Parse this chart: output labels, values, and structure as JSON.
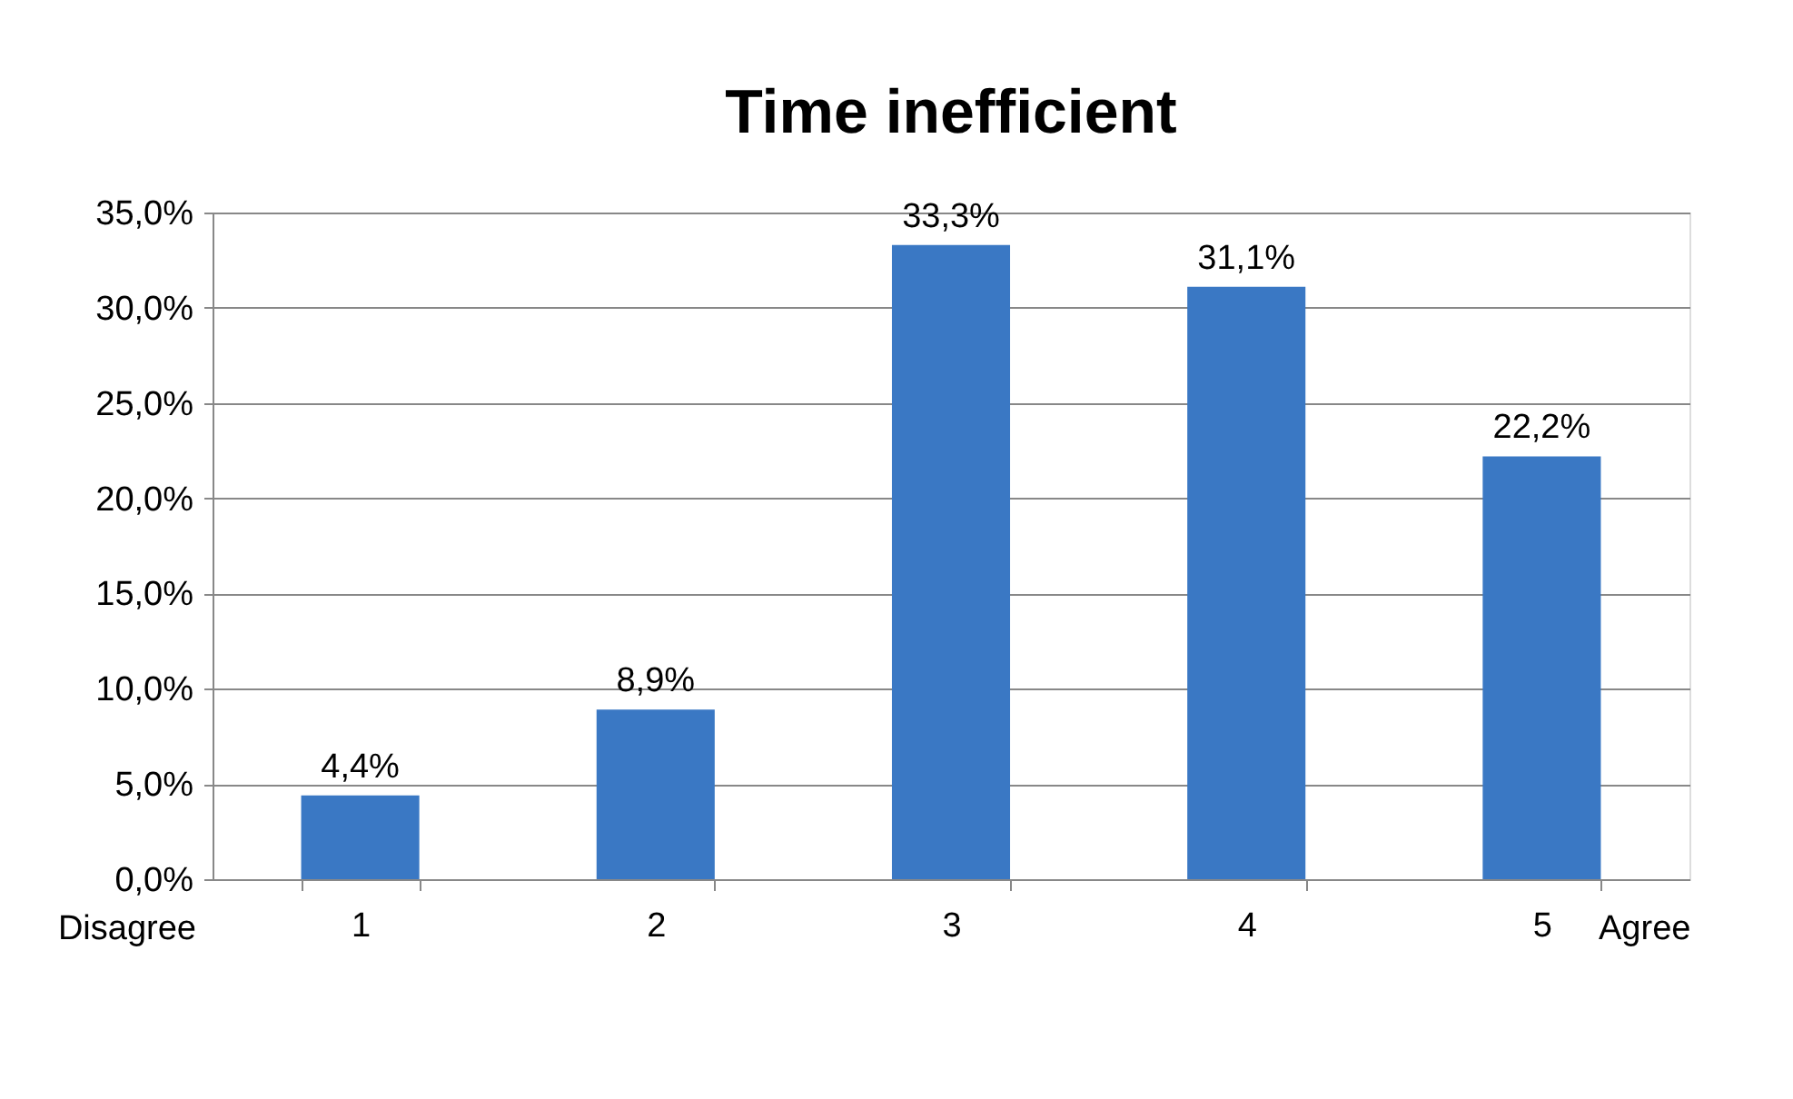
{
  "chart_data": {
    "type": "bar",
    "title": "Time inefficient",
    "categories": [
      "1",
      "2",
      "3",
      "4",
      "5"
    ],
    "values": [
      4.4,
      8.9,
      33.3,
      31.1,
      22.2
    ],
    "value_labels": [
      "4,4%",
      "8,9%",
      "33,3%",
      "31,1%",
      "22,2%"
    ],
    "color": "#3a78c4",
    "ylim": [
      0,
      35
    ],
    "yticks": [
      {
        "value": 0,
        "label": "0,0%"
      },
      {
        "value": 5,
        "label": "5,0%"
      },
      {
        "value": 10,
        "label": "10,0%"
      },
      {
        "value": 15,
        "label": "15,0%"
      },
      {
        "value": 20,
        "label": "20,0%"
      },
      {
        "value": 25,
        "label": "25,0%"
      },
      {
        "value": 30,
        "label": "30,0%"
      },
      {
        "value": 35,
        "label": "35,0%"
      }
    ],
    "grid": "y",
    "annotations": [
      "Disagree",
      "Agree"
    ]
  }
}
